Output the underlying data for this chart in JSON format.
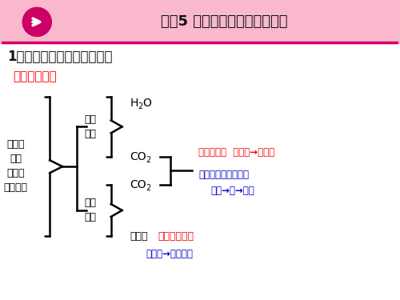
{
  "title": "考点5 细胞呼吸的相关实验探究",
  "subtitle": "1、探究酵母菌细胞呼吸方式",
  "section_label": "【实验原理】",
  "bg_color": "#ffffff",
  "header_bg": "#f9b8cc",
  "header_line_color": "#d4006a",
  "arrow_color": "#cc0066",
  "title_color": "#111111",
  "subtitle_color": "#111111",
  "section_color": "#ff0000",
  "black": "#000000",
  "red": "#ff0000",
  "blue": "#0000cc",
  "left_lines": [
    "酵母菌",
    "呼吸",
    "（兼性",
    "厌氧型）"
  ],
  "aerobic_lines": [
    "有氧",
    "呼吸"
  ],
  "anaerobic_lines": [
    "无氧",
    "呼吸"
  ],
  "ind1": "澄清石灰水  （澄清→浑浊）",
  "ind2": "溴麝香草酚蓝水溶液",
  "ind2b": "（蓝→绿→黄）",
  "ind3": "酸性重铬酸钾",
  "ind3b": "（橙色→灰绿色）",
  "alcohol_label": "酒精：",
  "h2o_label": "H",
  "h2o_sub": "2",
  "h2o_o": "O",
  "co2_label": "CO",
  "co2_sub": "2"
}
